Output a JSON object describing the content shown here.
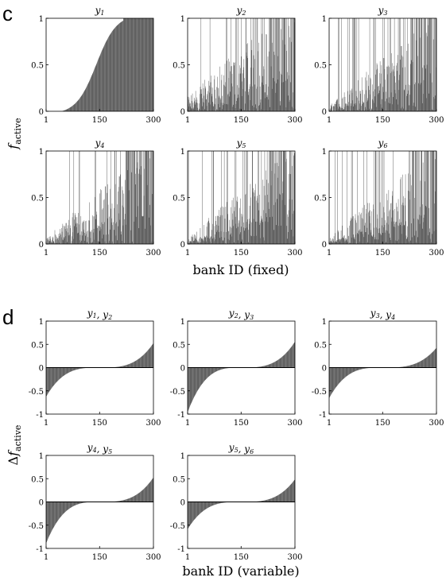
{
  "panels": [
    {
      "letter": "c",
      "ylabel": "f_active",
      "xlabel": "bank ID (fixed)",
      "ylim": [
        0,
        1
      ],
      "xlim": [
        1,
        300
      ],
      "yticks": [
        "1",
        "0.5",
        "0"
      ],
      "xticks": [
        "1",
        "150",
        "300"
      ],
      "subplots": [
        {
          "title": "y1"
        },
        {
          "title": "y2"
        },
        {
          "title": "y3"
        },
        {
          "title": "y4"
        },
        {
          "title": "y5"
        },
        {
          "title": "y6"
        }
      ]
    },
    {
      "letter": "d",
      "ylabel": "Δf_active",
      "xlabel": "bank ID (variable)",
      "ylim": [
        -1,
        1
      ],
      "xlim": [
        1,
        300
      ],
      "yticks": [
        "1",
        "0.5",
        "0",
        "-0.5",
        "-1"
      ],
      "xticks": [
        "1",
        "150",
        "300"
      ],
      "subplots": [
        {
          "title": "y1, y2"
        },
        {
          "title": "y2, y3"
        },
        {
          "title": "y3, y4"
        },
        {
          "title": "y4, y5"
        },
        {
          "title": "y5, y6"
        }
      ]
    }
  ],
  "chart_data": [
    {
      "type": "bar",
      "panel": "c",
      "title": "y1",
      "x_range": [
        1,
        300
      ],
      "ylim": [
        0,
        1
      ],
      "description_values": {
        "profile": "sigmoid",
        "onset_bank": 25,
        "reaches_1_at_bank": 215,
        "bars": 300,
        "sorted": true
      }
    },
    {
      "type": "bar",
      "panel": "c",
      "title": "y2",
      "x_range": [
        1,
        300
      ],
      "ylim": [
        0,
        1
      ],
      "description_values": {
        "profile": "noisy_increasing",
        "envelope_start": 0.15,
        "envelope_end": 1.0,
        "bars": 300
      }
    },
    {
      "type": "bar",
      "panel": "c",
      "title": "y3",
      "x_range": [
        1,
        300
      ],
      "ylim": [
        0,
        1
      ],
      "description_values": {
        "profile": "noisy_increasing",
        "envelope_start": 0.1,
        "envelope_end": 1.0,
        "bars": 300
      }
    },
    {
      "type": "bar",
      "panel": "c",
      "title": "y4",
      "x_range": [
        1,
        300
      ],
      "ylim": [
        0,
        1
      ],
      "description_values": {
        "profile": "noisy_increasing",
        "envelope_start": 0.05,
        "envelope_end": 0.95,
        "bars": 300
      }
    },
    {
      "type": "bar",
      "panel": "c",
      "title": "y5",
      "x_range": [
        1,
        300
      ],
      "ylim": [
        0,
        1
      ],
      "description_values": {
        "profile": "noisy_increasing",
        "envelope_start": 0.05,
        "envelope_end": 0.95,
        "bars": 300
      }
    },
    {
      "type": "bar",
      "panel": "c",
      "title": "y6",
      "x_range": [
        1,
        300
      ],
      "ylim": [
        0,
        1
      ],
      "description_values": {
        "profile": "noisy_increasing",
        "envelope_start": 0.05,
        "envelope_end": 0.95,
        "bars": 300
      }
    },
    {
      "type": "bar",
      "panel": "d",
      "title": "y1, y2",
      "x_range": [
        1,
        300
      ],
      "ylim": [
        -1,
        1
      ],
      "description_values": {
        "profile": "sorted_difference",
        "min": -0.62,
        "max": 0.52,
        "bars": 300
      }
    },
    {
      "type": "bar",
      "panel": "d",
      "title": "y2, y3",
      "x_range": [
        1,
        300
      ],
      "ylim": [
        -1,
        1
      ],
      "description_values": {
        "profile": "sorted_difference",
        "min": -0.95,
        "max": 0.55,
        "bars": 300
      }
    },
    {
      "type": "bar",
      "panel": "d",
      "title": "y3, y4",
      "x_range": [
        1,
        300
      ],
      "ylim": [
        -1,
        1
      ],
      "description_values": {
        "profile": "sorted_difference",
        "min": -0.65,
        "max": 0.42,
        "bars": 300
      }
    },
    {
      "type": "bar",
      "panel": "d",
      "title": "y4, y5",
      "x_range": [
        1,
        300
      ],
      "ylim": [
        -1,
        1
      ],
      "description_values": {
        "profile": "sorted_difference",
        "min": -0.88,
        "max": 0.52,
        "bars": 300
      }
    },
    {
      "type": "bar",
      "panel": "d",
      "title": "y5, y6",
      "x_range": [
        1,
        300
      ],
      "ylim": [
        -1,
        1
      ],
      "description_values": {
        "profile": "sorted_difference",
        "min": -0.58,
        "max": 0.48,
        "bars": 300
      }
    }
  ]
}
